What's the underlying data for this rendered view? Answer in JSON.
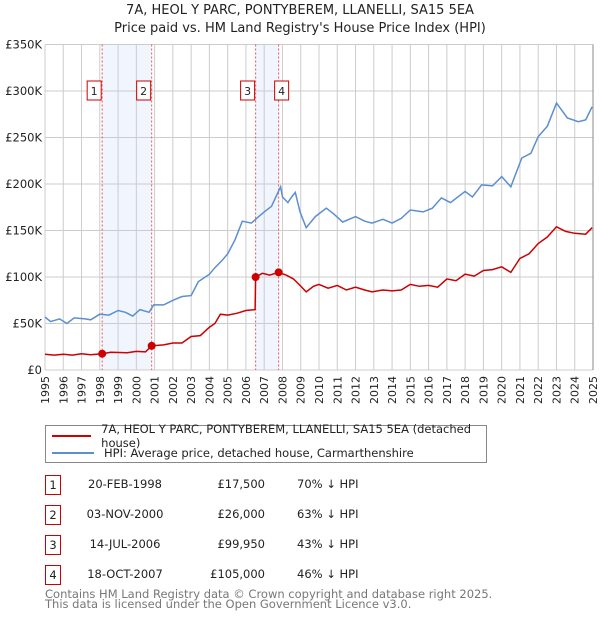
{
  "chart_data": {
    "type": "line",
    "title": "7A, HEOL Y PARC, PONTYBEREM, LLANELLI, SA15 5EA",
    "subtitle": "Price paid vs. HM Land Registry's House Price Index (HPI)",
    "xlim": [
      1995,
      2025
    ],
    "ylim": [
      0,
      350000
    ],
    "grid": true,
    "x_ticks": [
      "1995",
      "1996",
      "1997",
      "1998",
      "1999",
      "2000",
      "2001",
      "2002",
      "2003",
      "2004",
      "2005",
      "2006",
      "2007",
      "2008",
      "2009",
      "2010",
      "2011",
      "2012",
      "2013",
      "2014",
      "2015",
      "2016",
      "2017",
      "2018",
      "2019",
      "2020",
      "2021",
      "2022",
      "2023",
      "2024",
      "2025"
    ],
    "y_ticks": [
      {
        "value": 0,
        "label": "£0"
      },
      {
        "value": 50000,
        "label": "£50K"
      },
      {
        "value": 100000,
        "label": "£100K"
      },
      {
        "value": 150000,
        "label": "£150K"
      },
      {
        "value": 200000,
        "label": "£200K"
      },
      {
        "value": 250000,
        "label": "£250K"
      },
      {
        "value": 300000,
        "label": "£300K"
      },
      {
        "value": 350000,
        "label": "£350K"
      }
    ],
    "series": [
      {
        "name": "7A, HEOL Y PARC, PONTYBEREM, LLANELLI, SA15 5EA (detached house)",
        "color": "#cc0000",
        "points": [
          [
            1995,
            17000
          ],
          [
            1995.5,
            16000
          ],
          [
            1996,
            17000
          ],
          [
            1996.5,
            16000
          ],
          [
            1997,
            17500
          ],
          [
            1997.5,
            16500
          ],
          [
            1998.13,
            17500
          ],
          [
            1998.6,
            19000
          ],
          [
            1999.5,
            18500
          ],
          [
            2000,
            20000
          ],
          [
            2000.5,
            19500
          ],
          [
            2000.84,
            26000
          ],
          [
            2001.5,
            27000
          ],
          [
            2002,
            29000
          ],
          [
            2002.5,
            29000
          ],
          [
            2003,
            36000
          ],
          [
            2003.5,
            37000
          ],
          [
            2004,
            46000
          ],
          [
            2004.3,
            50000
          ],
          [
            2004.6,
            60000
          ],
          [
            2005,
            59000
          ],
          [
            2005.5,
            61000
          ],
          [
            2006,
            64000
          ],
          [
            2006.5,
            65000
          ],
          [
            2006.53,
            99950
          ],
          [
            2006.9,
            104000
          ],
          [
            2007.3,
            102000
          ],
          [
            2007.79,
            105000
          ],
          [
            2008.2,
            102000
          ],
          [
            2008.6,
            98000
          ],
          [
            2008.96,
            91000
          ],
          [
            2009.3,
            84000
          ],
          [
            2009.7,
            90000
          ],
          [
            2010,
            92000
          ],
          [
            2010.5,
            88000
          ],
          [
            2011,
            91000
          ],
          [
            2011.5,
            86000
          ],
          [
            2012,
            89000
          ],
          [
            2012.5,
            86000
          ],
          [
            2012.9,
            84000
          ],
          [
            2013.5,
            86000
          ],
          [
            2014,
            85000
          ],
          [
            2014.5,
            86000
          ],
          [
            2015,
            92000
          ],
          [
            2015.5,
            90000
          ],
          [
            2016,
            91000
          ],
          [
            2016.5,
            89000
          ],
          [
            2017,
            98000
          ],
          [
            2017.5,
            96000
          ],
          [
            2018,
            103000
          ],
          [
            2018.5,
            101000
          ],
          [
            2019,
            107000
          ],
          [
            2019.5,
            108000
          ],
          [
            2020,
            111000
          ],
          [
            2020.5,
            105000
          ],
          [
            2021,
            120000
          ],
          [
            2021.5,
            125000
          ],
          [
            2022,
            136000
          ],
          [
            2022.5,
            143000
          ],
          [
            2023,
            154000
          ],
          [
            2023.5,
            149000
          ],
          [
            2024,
            147000
          ],
          [
            2024.6,
            146000
          ],
          [
            2024.95,
            153000
          ]
        ]
      },
      {
        "name": "HPI: Average price, detached house, Carmarthenshire",
        "color": "#5b8fd0",
        "points": [
          [
            1995,
            57000
          ],
          [
            1995.3,
            52000
          ],
          [
            1995.8,
            55000
          ],
          [
            1996.2,
            50000
          ],
          [
            1996.6,
            56000
          ],
          [
            1997.2,
            55000
          ],
          [
            1997.5,
            54000
          ],
          [
            1998,
            60000
          ],
          [
            1998.5,
            59000
          ],
          [
            1999,
            64000
          ],
          [
            1999.4,
            62000
          ],
          [
            1999.8,
            58000
          ],
          [
            2000.2,
            65000
          ],
          [
            2000.7,
            62000
          ],
          [
            2000.95,
            70000
          ],
          [
            2001.5,
            70000
          ],
          [
            2002,
            75000
          ],
          [
            2002.5,
            79000
          ],
          [
            2003,
            80000
          ],
          [
            2003.4,
            95000
          ],
          [
            2004,
            103000
          ],
          [
            2004.3,
            110000
          ],
          [
            2004.7,
            118000
          ],
          [
            2005,
            125000
          ],
          [
            2005.4,
            140000
          ],
          [
            2005.8,
            160000
          ],
          [
            2006.3,
            158000
          ],
          [
            2006.7,
            165000
          ],
          [
            2007,
            170000
          ],
          [
            2007.4,
            176000
          ],
          [
            2008,
            186000
          ],
          [
            2008.3,
            180000
          ],
          [
            2008.7,
            191000
          ],
          [
            2007.9,
            197000
          ],
          [
            2008.5,
            186000
          ],
          [
            2008.96,
            170000
          ],
          [
            2009.3,
            153000
          ],
          [
            2009.8,
            165000
          ],
          [
            2010.4,
            174000
          ],
          [
            2010.8,
            168000
          ],
          [
            2011.3,
            159000
          ],
          [
            2012,
            165000
          ],
          [
            2012.5,
            160000
          ],
          [
            2012.9,
            158000
          ],
          [
            2013.5,
            162000
          ],
          [
            2014,
            158000
          ],
          [
            2014.5,
            163000
          ],
          [
            2015,
            172000
          ],
          [
            2015.7,
            170000
          ],
          [
            2016.2,
            174000
          ],
          [
            2016.7,
            185000
          ],
          [
            2017.2,
            180000
          ],
          [
            2018,
            192000
          ],
          [
            2018.4,
            186000
          ],
          [
            2018.9,
            199000
          ],
          [
            2019.5,
            198000
          ],
          [
            2020,
            208000
          ],
          [
            2020.5,
            197000
          ],
          [
            2021.1,
            228000
          ],
          [
            2021.6,
            233000
          ],
          [
            2022,
            251000
          ],
          [
            2022.5,
            262000
          ],
          [
            2023,
            287000
          ],
          [
            2023.6,
            271000
          ],
          [
            2024.2,
            267000
          ],
          [
            2024.6,
            269000
          ],
          [
            2024.95,
            283000
          ]
        ]
      }
    ],
    "sales": [
      {
        "id": "1",
        "year": 1998.13,
        "price": 17500,
        "date": "20-FEB-1998",
        "price_label": "£17,500",
        "hpi": "70% ↓ HPI"
      },
      {
        "id": "2",
        "year": 2000.84,
        "price": 26000,
        "date": "03-NOV-2000",
        "price_label": "£26,000",
        "hpi": "63% ↓ HPI"
      },
      {
        "id": "3",
        "year": 2006.53,
        "price": 99950,
        "date": "14-JUL-2006",
        "price_label": "£99,950",
        "hpi": "43% ↓ HPI"
      },
      {
        "id": "4",
        "year": 2007.79,
        "price": 105000,
        "date": "18-OCT-2007",
        "price_label": "£105,000",
        "hpi": "46% ↓ HPI"
      }
    ],
    "legend_position": "bottom"
  },
  "footer": {
    "line1": "Contains HM Land Registry data © Crown copyright and database right 2025.",
    "line2": "This data is licensed under the Open Government Licence v3.0."
  }
}
